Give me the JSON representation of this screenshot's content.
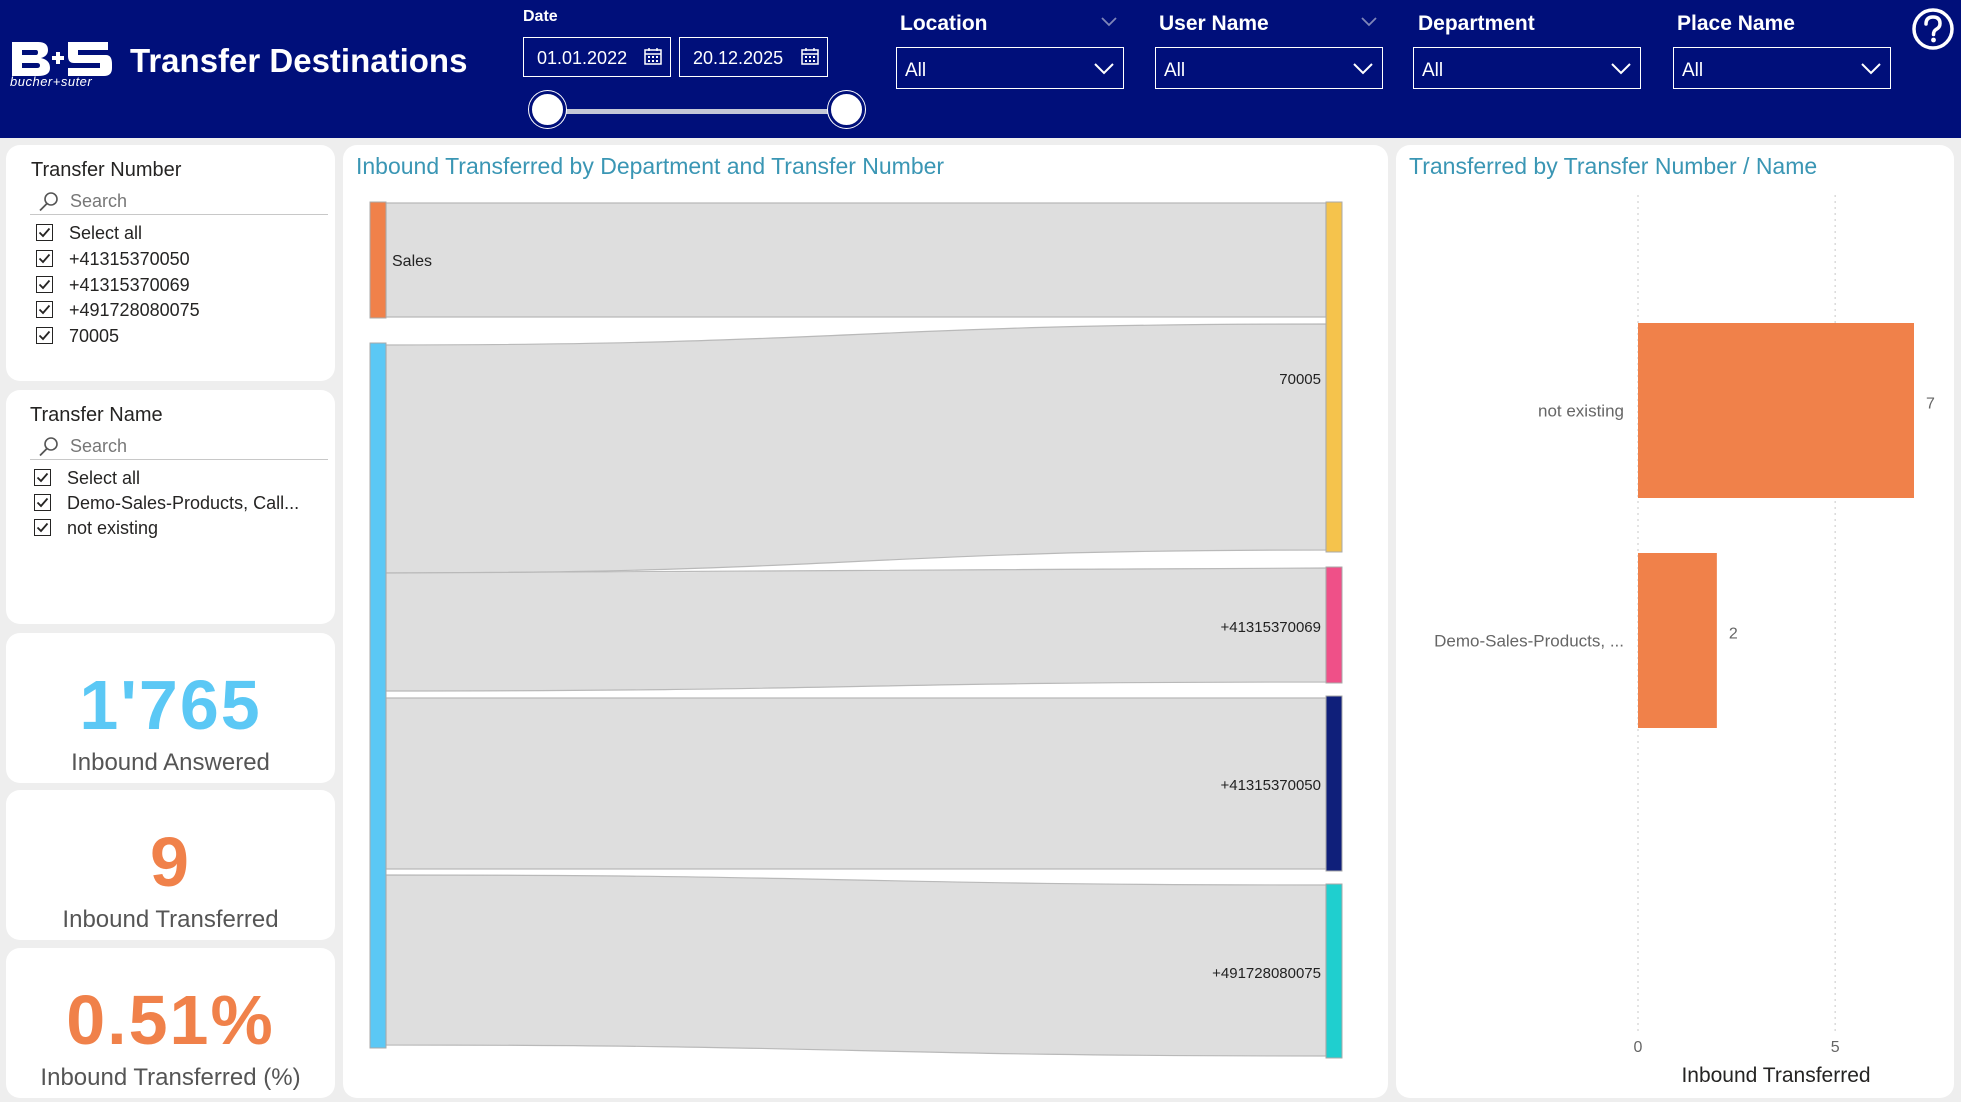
{
  "header": {
    "logo_text": "B+S",
    "logo_subtext": "bucher+suter",
    "title": "Transfer Destinations",
    "date_label": "Date",
    "date_from": "01.01.2022",
    "date_to": "20.12.2025",
    "filters": [
      {
        "label": "Location",
        "value": "All"
      },
      {
        "label": "User Name",
        "value": "All"
      },
      {
        "label": "Department",
        "value": "All"
      },
      {
        "label": "Place Name",
        "value": "All"
      }
    ],
    "help_icon": "question-circle-icon"
  },
  "slicers": {
    "transfer_number": {
      "title": "Transfer Number",
      "search_placeholder": "Search",
      "items": [
        "Select all",
        "+41315370050",
        "+41315370069",
        "+491728080075",
        "70005"
      ]
    },
    "transfer_name": {
      "title": "Transfer Name",
      "search_placeholder": "Search",
      "items": [
        "Select all",
        "Demo-Sales-Products, Call...",
        "not existing"
      ]
    }
  },
  "kpis": [
    {
      "value": "1'765",
      "label": "Inbound Answered",
      "color": "#5bc8f5"
    },
    {
      "value": "9",
      "label": "Inbound Transferred",
      "color": "#f0814a"
    },
    {
      "value": "0.51%",
      "label": "Inbound Transferred (%)",
      "color": "#f0814a"
    }
  ],
  "sankey": {
    "title": "Inbound Transferred by Department and Transfer Number",
    "source_label": "Sales",
    "targets": [
      "70005",
      "+41315370069",
      "+41315370050",
      "+491728080075"
    ],
    "colors": {
      "sales": "#f0814a",
      "blank_source": "#5bc8f5",
      "t70005": "#f5c34c",
      "t41315370069": "#ef5088",
      "t41315370050": "#0f1f7a",
      "t491728080075": "#1fcfcf",
      "link": "#dedede"
    }
  },
  "chart_data": {
    "type": "bar",
    "orientation": "horizontal",
    "title": "Transferred by Transfer Number / Name",
    "categories": [
      "not existing",
      "Demo-Sales-Products, ..."
    ],
    "values": [
      7,
      2
    ],
    "xlabel": "Inbound Transferred",
    "ylabel": "",
    "xlim": [
      0,
      7
    ],
    "xticks": [
      0,
      5
    ],
    "grid": true,
    "color": "#f0814a"
  }
}
